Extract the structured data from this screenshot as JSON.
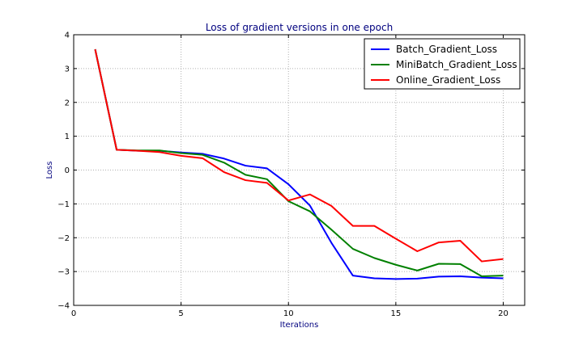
{
  "chart_data": {
    "type": "line",
    "title": "Loss of gradient versions in one epoch",
    "xlabel": "Iterations",
    "ylabel": "Loss",
    "xlim": [
      0,
      21
    ],
    "ylim": [
      -4,
      4
    ],
    "xticks": [
      0,
      5,
      10,
      15,
      20
    ],
    "yticks": [
      4,
      3,
      2,
      1,
      0,
      -1,
      -2,
      -3,
      -4
    ],
    "xtick_labels": [
      "0",
      "5",
      "10",
      "15",
      "20"
    ],
    "ytick_labels": [
      "4",
      "3",
      "2",
      "1",
      "0",
      "−1",
      "−2",
      "−3",
      "−4"
    ],
    "grid": true,
    "legend_position": "top-right",
    "x": [
      1,
      2,
      3,
      4,
      5,
      6,
      7,
      8,
      9,
      10,
      11,
      12,
      13,
      14,
      15,
      16,
      17,
      18,
      19,
      20
    ],
    "series": [
      {
        "name": "Batch_Gradient_Loss",
        "color": "#0000ff",
        "values": [
          3.57,
          0.6,
          0.57,
          0.57,
          0.52,
          0.48,
          0.34,
          0.13,
          0.05,
          -0.42,
          -1.05,
          -2.15,
          -3.12,
          -3.2,
          -3.22,
          -3.21,
          -3.15,
          -3.14,
          -3.18,
          -3.2
        ]
      },
      {
        "name": "MiniBatch_Gradient_Loss",
        "color": "#008000",
        "values": [
          3.57,
          0.6,
          0.58,
          0.58,
          0.5,
          0.45,
          0.22,
          -0.14,
          -0.27,
          -0.92,
          -1.22,
          -1.76,
          -2.33,
          -2.6,
          -2.8,
          -2.97,
          -2.77,
          -2.78,
          -3.14,
          -3.12
        ]
      },
      {
        "name": "Online_Gradient_Loss",
        "color": "#ff0000",
        "values": [
          3.57,
          0.6,
          0.57,
          0.53,
          0.42,
          0.35,
          -0.06,
          -0.3,
          -0.38,
          -0.9,
          -0.72,
          -1.06,
          -1.65,
          -1.65,
          -2.03,
          -2.4,
          -2.14,
          -2.09,
          -2.7,
          -2.63
        ]
      }
    ]
  }
}
